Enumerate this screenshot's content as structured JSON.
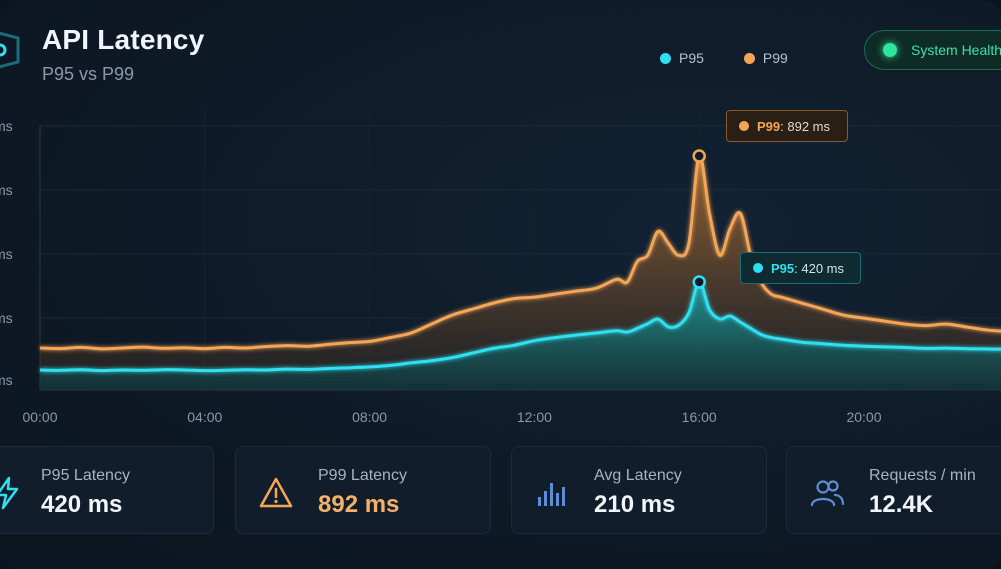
{
  "header": {
    "title": "API Latency",
    "subtitle": "P95 vs P99"
  },
  "legend": [
    {
      "label": "P95",
      "color": "#2fe0f0"
    },
    {
      "label": "P99",
      "color": "#f4a556"
    }
  ],
  "status": {
    "label": "System Health",
    "color": "#2ee59d"
  },
  "tooltips": {
    "p99": {
      "name": "P99",
      "value": "892 ms"
    },
    "p95": {
      "name": "P95",
      "value": "420 ms"
    }
  },
  "stats": [
    {
      "label": "P95 Latency",
      "value": "420 ms",
      "icon": "lightning-icon"
    },
    {
      "label": "P99 Latency",
      "value": "892 ms",
      "icon": "warning-triangle-icon"
    },
    {
      "label": "Avg Latency",
      "value": "210 ms",
      "icon": "bar-chart-icon"
    },
    {
      "label": "Requests / min",
      "value": "12.4K",
      "icon": "users-icon"
    }
  ],
  "chart_data": {
    "type": "area",
    "x_ticks": [
      "00:00",
      "04:00",
      "08:00",
      "12:00",
      "16:00",
      "20:00"
    ],
    "y_tick_unit": "ms",
    "x_hours": [
      0,
      0.5,
      1,
      1.5,
      2,
      2.5,
      3,
      3.5,
      4,
      4.5,
      5,
      5.5,
      6,
      6.5,
      7,
      7.5,
      8,
      8.5,
      9,
      9.5,
      10,
      10.5,
      11,
      11.5,
      12,
      12.5,
      13,
      13.5,
      14,
      14.25,
      14.5,
      14.75,
      15,
      15.25,
      15.5,
      15.75,
      16,
      16.25,
      16.5,
      16.75,
      17,
      17.25,
      17.5,
      17.75,
      18,
      18.5,
      19,
      19.5,
      20,
      20.5,
      21,
      21.5,
      22,
      22.5,
      23,
      23.5,
      24
    ],
    "series": [
      {
        "name": "P99",
        "color": "#f4a556",
        "values": [
          250,
          248,
          252,
          247,
          250,
          253,
          249,
          251,
          248,
          252,
          250,
          255,
          258,
          256,
          262,
          268,
          272,
          285,
          300,
          330,
          360,
          380,
          400,
          415,
          420,
          430,
          440,
          450,
          480,
          470,
          540,
          560,
          640,
          600,
          560,
          600,
          892,
          700,
          560,
          650,
          700,
          560,
          470,
          430,
          420,
          400,
          380,
          360,
          350,
          340,
          330,
          325,
          330,
          320,
          310,
          305,
          300
        ]
      },
      {
        "name": "P95",
        "color": "#2fe0f0",
        "values": [
          135,
          134,
          136,
          133,
          135,
          134,
          136,
          135,
          133,
          134,
          136,
          135,
          138,
          137,
          140,
          142,
          145,
          150,
          158,
          165,
          175,
          190,
          205,
          215,
          230,
          240,
          248,
          255,
          262,
          258,
          270,
          285,
          300,
          275,
          280,
          320,
          420,
          330,
          300,
          310,
          290,
          270,
          250,
          240,
          235,
          225,
          220,
          215,
          212,
          210,
          208,
          205,
          206,
          204,
          203,
          202,
          200
        ]
      }
    ],
    "highlight": [
      {
        "series": "P99",
        "x_hour": 16,
        "value": 892
      },
      {
        "series": "P95",
        "x_hour": 16,
        "value": 420
      }
    ],
    "grid": true
  }
}
